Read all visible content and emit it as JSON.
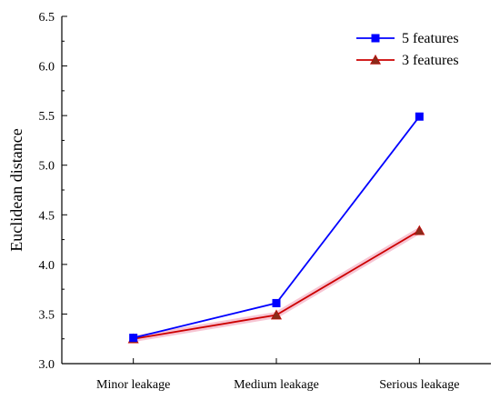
{
  "chart_data": {
    "type": "line",
    "categories": [
      "Minor leakage",
      "Medium leakage",
      "Serious leakage"
    ],
    "ylabel": "Euclidean distance",
    "xlabel": "",
    "ylim": [
      3.0,
      6.5
    ],
    "yticks": [
      "3.0",
      "3.5",
      "4.0",
      "4.5",
      "5.0",
      "5.5",
      "6.0",
      "6.5"
    ],
    "grid": false,
    "legend_position": "top-right",
    "series": [
      {
        "name": "5 features",
        "values": [
          3.26,
          3.61,
          5.49
        ],
        "color": "#0000ff",
        "marker": "square"
      },
      {
        "name": "3 features",
        "values": [
          3.25,
          3.49,
          4.34
        ],
        "color": "#cc0000",
        "marker": "triangle"
      }
    ]
  }
}
